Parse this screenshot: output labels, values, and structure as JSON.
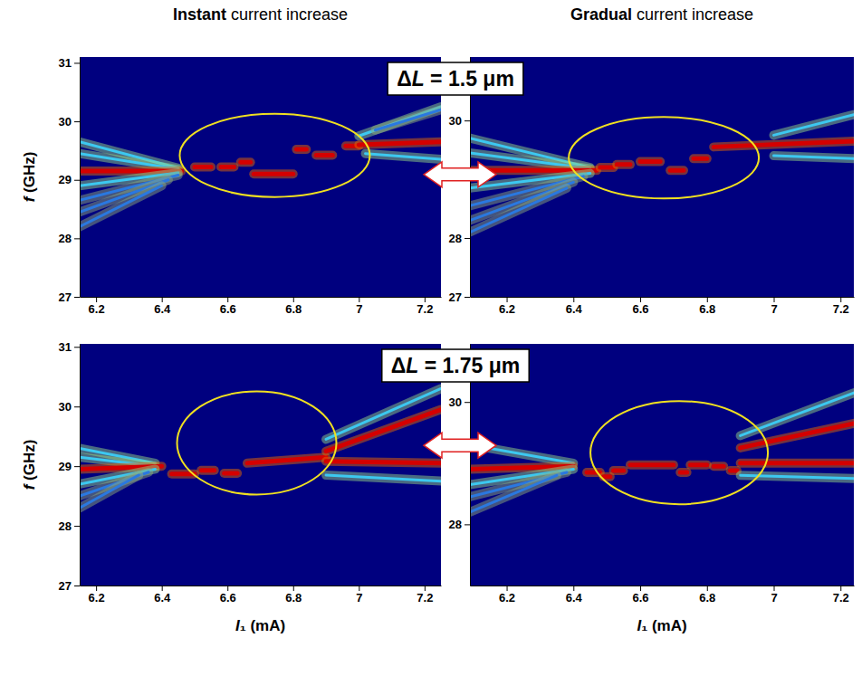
{
  "column_titles": [
    "Instant current increase",
    "Gradual current increase"
  ],
  "row_titles": [
    "ΔL = 1.5 μm",
    "ΔL = 1.75 μm"
  ],
  "chart_data": [
    {
      "type": "line",
      "y_label": "f (GHz)",
      "xlim": [
        6.15,
        7.25
      ],
      "ylim": [
        27,
        31.1
      ],
      "xticks": [
        6.2,
        6.4,
        6.6,
        6.8,
        7.0,
        7.2
      ],
      "yticks": [
        27,
        28,
        29,
        30,
        31
      ],
      "series": [
        {
          "x": [
            6.15,
            6.45
          ],
          "values": [
            29.65,
            29.2
          ],
          "color": "#3cc8f0"
        },
        {
          "x": [
            6.15,
            6.45
          ],
          "values": [
            29.45,
            29.18
          ],
          "color": "#3cc8f0"
        },
        {
          "x": [
            6.15,
            6.46
          ],
          "values": [
            29.15,
            29.15
          ],
          "color": "#d40000"
        },
        {
          "x": [
            6.15,
            6.45
          ],
          "values": [
            28.9,
            29.12
          ],
          "color": "#3cc8f0"
        },
        {
          "x": [
            6.15,
            6.45
          ],
          "values": [
            28.65,
            29.08
          ],
          "color": "#2a78e0"
        },
        {
          "x": [
            6.15,
            6.42
          ],
          "values": [
            28.45,
            29.0
          ],
          "color": "#2a78e0"
        },
        {
          "x": [
            6.15,
            6.4
          ],
          "values": [
            28.2,
            28.9
          ],
          "color": "#2a78e0"
        },
        {
          "x": [
            6.5,
            6.55
          ],
          "values": [
            29.22,
            29.22
          ],
          "color": "#d40000"
        },
        {
          "x": [
            6.58,
            6.62
          ],
          "values": [
            29.22,
            29.22
          ],
          "color": "#d40000"
        },
        {
          "x": [
            6.64,
            6.67
          ],
          "values": [
            29.3,
            29.3
          ],
          "color": "#d40000"
        },
        {
          "x": [
            6.68,
            6.8
          ],
          "values": [
            29.1,
            29.1
          ],
          "color": "#d40000"
        },
        {
          "x": [
            6.81,
            6.84
          ],
          "values": [
            29.52,
            29.52
          ],
          "color": "#d40000"
        },
        {
          "x": [
            6.87,
            6.92
          ],
          "values": [
            29.42,
            29.42
          ],
          "color": "#d40000"
        },
        {
          "x": [
            6.96,
            7.0
          ],
          "values": [
            29.58,
            29.58
          ],
          "color": "#d40000"
        },
        {
          "x": [
            7.0,
            7.25
          ],
          "values": [
            29.6,
            29.65
          ],
          "color": "#d40000"
        },
        {
          "x": [
            7.0,
            7.25
          ],
          "values": [
            29.75,
            30.25
          ],
          "color": "#3cc8f0"
        },
        {
          "x": [
            7.05,
            7.25
          ],
          "values": [
            29.85,
            30.2
          ],
          "color": "#2a78e0"
        },
        {
          "x": [
            7.02,
            7.25
          ],
          "values": [
            29.45,
            29.35
          ],
          "color": "#3cc8f0"
        }
      ]
    },
    {
      "type": "line",
      "xlim": [
        6.09,
        7.24
      ],
      "ylim": [
        27,
        31.08
      ],
      "xticks": [
        6.2,
        6.4,
        6.6,
        6.8,
        7.0,
        7.2
      ],
      "yticks": [
        27,
        28,
        30
      ],
      "series": [
        {
          "x": [
            6.09,
            6.45
          ],
          "values": [
            29.7,
            29.2
          ],
          "color": "#3cc8f0"
        },
        {
          "x": [
            6.09,
            6.45
          ],
          "values": [
            29.45,
            29.18
          ],
          "color": "#3cc8f0"
        },
        {
          "x": [
            6.09,
            6.47
          ],
          "values": [
            29.15,
            29.15
          ],
          "color": "#d40000"
        },
        {
          "x": [
            6.09,
            6.45
          ],
          "values": [
            28.85,
            29.1
          ],
          "color": "#3cc8f0"
        },
        {
          "x": [
            6.09,
            6.43
          ],
          "values": [
            28.55,
            29.05
          ],
          "color": "#2a78e0"
        },
        {
          "x": [
            6.09,
            6.4
          ],
          "values": [
            28.3,
            28.95
          ],
          "color": "#2a78e0"
        },
        {
          "x": [
            6.09,
            6.38
          ],
          "values": [
            28.1,
            28.85
          ],
          "color": "#2a78e0"
        },
        {
          "x": [
            6.48,
            6.52
          ],
          "values": [
            29.2,
            29.2
          ],
          "color": "#d40000"
        },
        {
          "x": [
            6.53,
            6.57
          ],
          "values": [
            29.25,
            29.25
          ],
          "color": "#d40000"
        },
        {
          "x": [
            6.6,
            6.66
          ],
          "values": [
            29.3,
            29.3
          ],
          "color": "#d40000"
        },
        {
          "x": [
            6.69,
            6.73
          ],
          "values": [
            29.15,
            29.15
          ],
          "color": "#d40000"
        },
        {
          "x": [
            6.76,
            6.8
          ],
          "values": [
            29.35,
            29.35
          ],
          "color": "#d40000"
        },
        {
          "x": [
            6.82,
            7.24
          ],
          "values": [
            29.55,
            29.65
          ],
          "color": "#d40000"
        },
        {
          "x": [
            7.0,
            7.24
          ],
          "values": [
            29.75,
            30.1
          ],
          "color": "#3cc8f0"
        },
        {
          "x": [
            7.0,
            7.24
          ],
          "values": [
            29.4,
            29.35
          ],
          "color": "#3cc8f0"
        }
      ]
    },
    {
      "type": "line",
      "x_label": "I₁ (mA)",
      "y_label": "f (GHz)",
      "xlim": [
        6.15,
        7.25
      ],
      "ylim": [
        27,
        31.05
      ],
      "xticks": [
        6.2,
        6.4,
        6.6,
        6.8,
        7.0,
        7.2
      ],
      "yticks": [
        27,
        28,
        29,
        30,
        31
      ],
      "series": [
        {
          "x": [
            6.15,
            6.38
          ],
          "values": [
            29.3,
            29.05
          ],
          "color": "#3cc8f0"
        },
        {
          "x": [
            6.15,
            6.38
          ],
          "values": [
            29.15,
            29.0
          ],
          "color": "#3cc8f0"
        },
        {
          "x": [
            6.15,
            6.4
          ],
          "values": [
            28.95,
            29.0
          ],
          "color": "#d40000"
        },
        {
          "x": [
            6.15,
            6.38
          ],
          "values": [
            28.7,
            28.95
          ],
          "color": "#3cc8f0"
        },
        {
          "x": [
            6.15,
            6.36
          ],
          "values": [
            28.5,
            28.9
          ],
          "color": "#2a78e0"
        },
        {
          "x": [
            6.15,
            6.33
          ],
          "values": [
            28.3,
            28.85
          ],
          "color": "#2a78e0"
        },
        {
          "x": [
            6.43,
            6.5
          ],
          "values": [
            28.87,
            28.87
          ],
          "color": "#d40000"
        },
        {
          "x": [
            6.52,
            6.56
          ],
          "values": [
            28.93,
            28.93
          ],
          "color": "#d40000"
        },
        {
          "x": [
            6.59,
            6.63
          ],
          "values": [
            28.88,
            28.88
          ],
          "color": "#d40000"
        },
        {
          "x": [
            6.66,
            6.9
          ],
          "values": [
            29.05,
            29.15
          ],
          "color": "#d40000"
        },
        {
          "x": [
            6.9,
            7.25
          ],
          "values": [
            29.08,
            29.05
          ],
          "color": "#d40000"
        },
        {
          "x": [
            6.9,
            7.25
          ],
          "values": [
            29.25,
            29.95
          ],
          "color": "#d40000"
        },
        {
          "x": [
            6.9,
            7.25
          ],
          "values": [
            29.45,
            30.3
          ],
          "color": "#3cc8f0"
        },
        {
          "x": [
            6.9,
            7.25
          ],
          "values": [
            28.85,
            28.75
          ],
          "color": "#3cc8f0"
        }
      ]
    },
    {
      "type": "line",
      "x_label": "I₁ (mA)",
      "xlim": [
        6.09,
        7.24
      ],
      "ylim": [
        27,
        30.95
      ],
      "xticks": [
        6.2,
        6.4,
        6.6,
        6.8,
        7.0,
        7.2
      ],
      "yticks": [
        28,
        30
      ],
      "series": [
        {
          "x": [
            6.09,
            6.4
          ],
          "values": [
            29.3,
            29.0
          ],
          "color": "#3cc8f0"
        },
        {
          "x": [
            6.09,
            6.4
          ],
          "values": [
            28.9,
            28.95
          ],
          "color": "#d40000"
        },
        {
          "x": [
            6.09,
            6.4
          ],
          "values": [
            28.65,
            28.9
          ],
          "color": "#3cc8f0"
        },
        {
          "x": [
            6.09,
            6.38
          ],
          "values": [
            28.45,
            28.85
          ],
          "color": "#2a78e0"
        },
        {
          "x": [
            6.09,
            6.35
          ],
          "values": [
            28.2,
            28.8
          ],
          "color": "#2a78e0"
        },
        {
          "x": [
            6.44,
            6.48
          ],
          "values": [
            28.85,
            28.85
          ],
          "color": "#d40000"
        },
        {
          "x": [
            6.49,
            6.51
          ],
          "values": [
            28.78,
            28.78
          ],
          "color": "#d40000"
        },
        {
          "x": [
            6.52,
            6.55
          ],
          "values": [
            28.88,
            28.88
          ],
          "color": "#d40000"
        },
        {
          "x": [
            6.57,
            6.7
          ],
          "values": [
            28.97,
            28.97
          ],
          "color": "#d40000"
        },
        {
          "x": [
            6.72,
            6.74
          ],
          "values": [
            28.85,
            28.85
          ],
          "color": "#d40000"
        },
        {
          "x": [
            6.75,
            6.8
          ],
          "values": [
            28.97,
            28.97
          ],
          "color": "#d40000"
        },
        {
          "x": [
            6.82,
            6.85
          ],
          "values": [
            28.95,
            28.95
          ],
          "color": "#d40000"
        },
        {
          "x": [
            6.87,
            6.89
          ],
          "values": [
            28.88,
            28.88
          ],
          "color": "#d40000"
        },
        {
          "x": [
            6.9,
            7.24
          ],
          "values": [
            29.0,
            29.0
          ],
          "color": "#d40000"
        },
        {
          "x": [
            6.9,
            7.24
          ],
          "values": [
            29.25,
            29.65
          ],
          "color": "#d40000"
        },
        {
          "x": [
            6.9,
            7.24
          ],
          "values": [
            29.45,
            30.15
          ],
          "color": "#3cc8f0"
        },
        {
          "x": [
            6.9,
            7.24
          ],
          "values": [
            28.8,
            28.75
          ],
          "color": "#3cc8f0"
        }
      ]
    }
  ]
}
